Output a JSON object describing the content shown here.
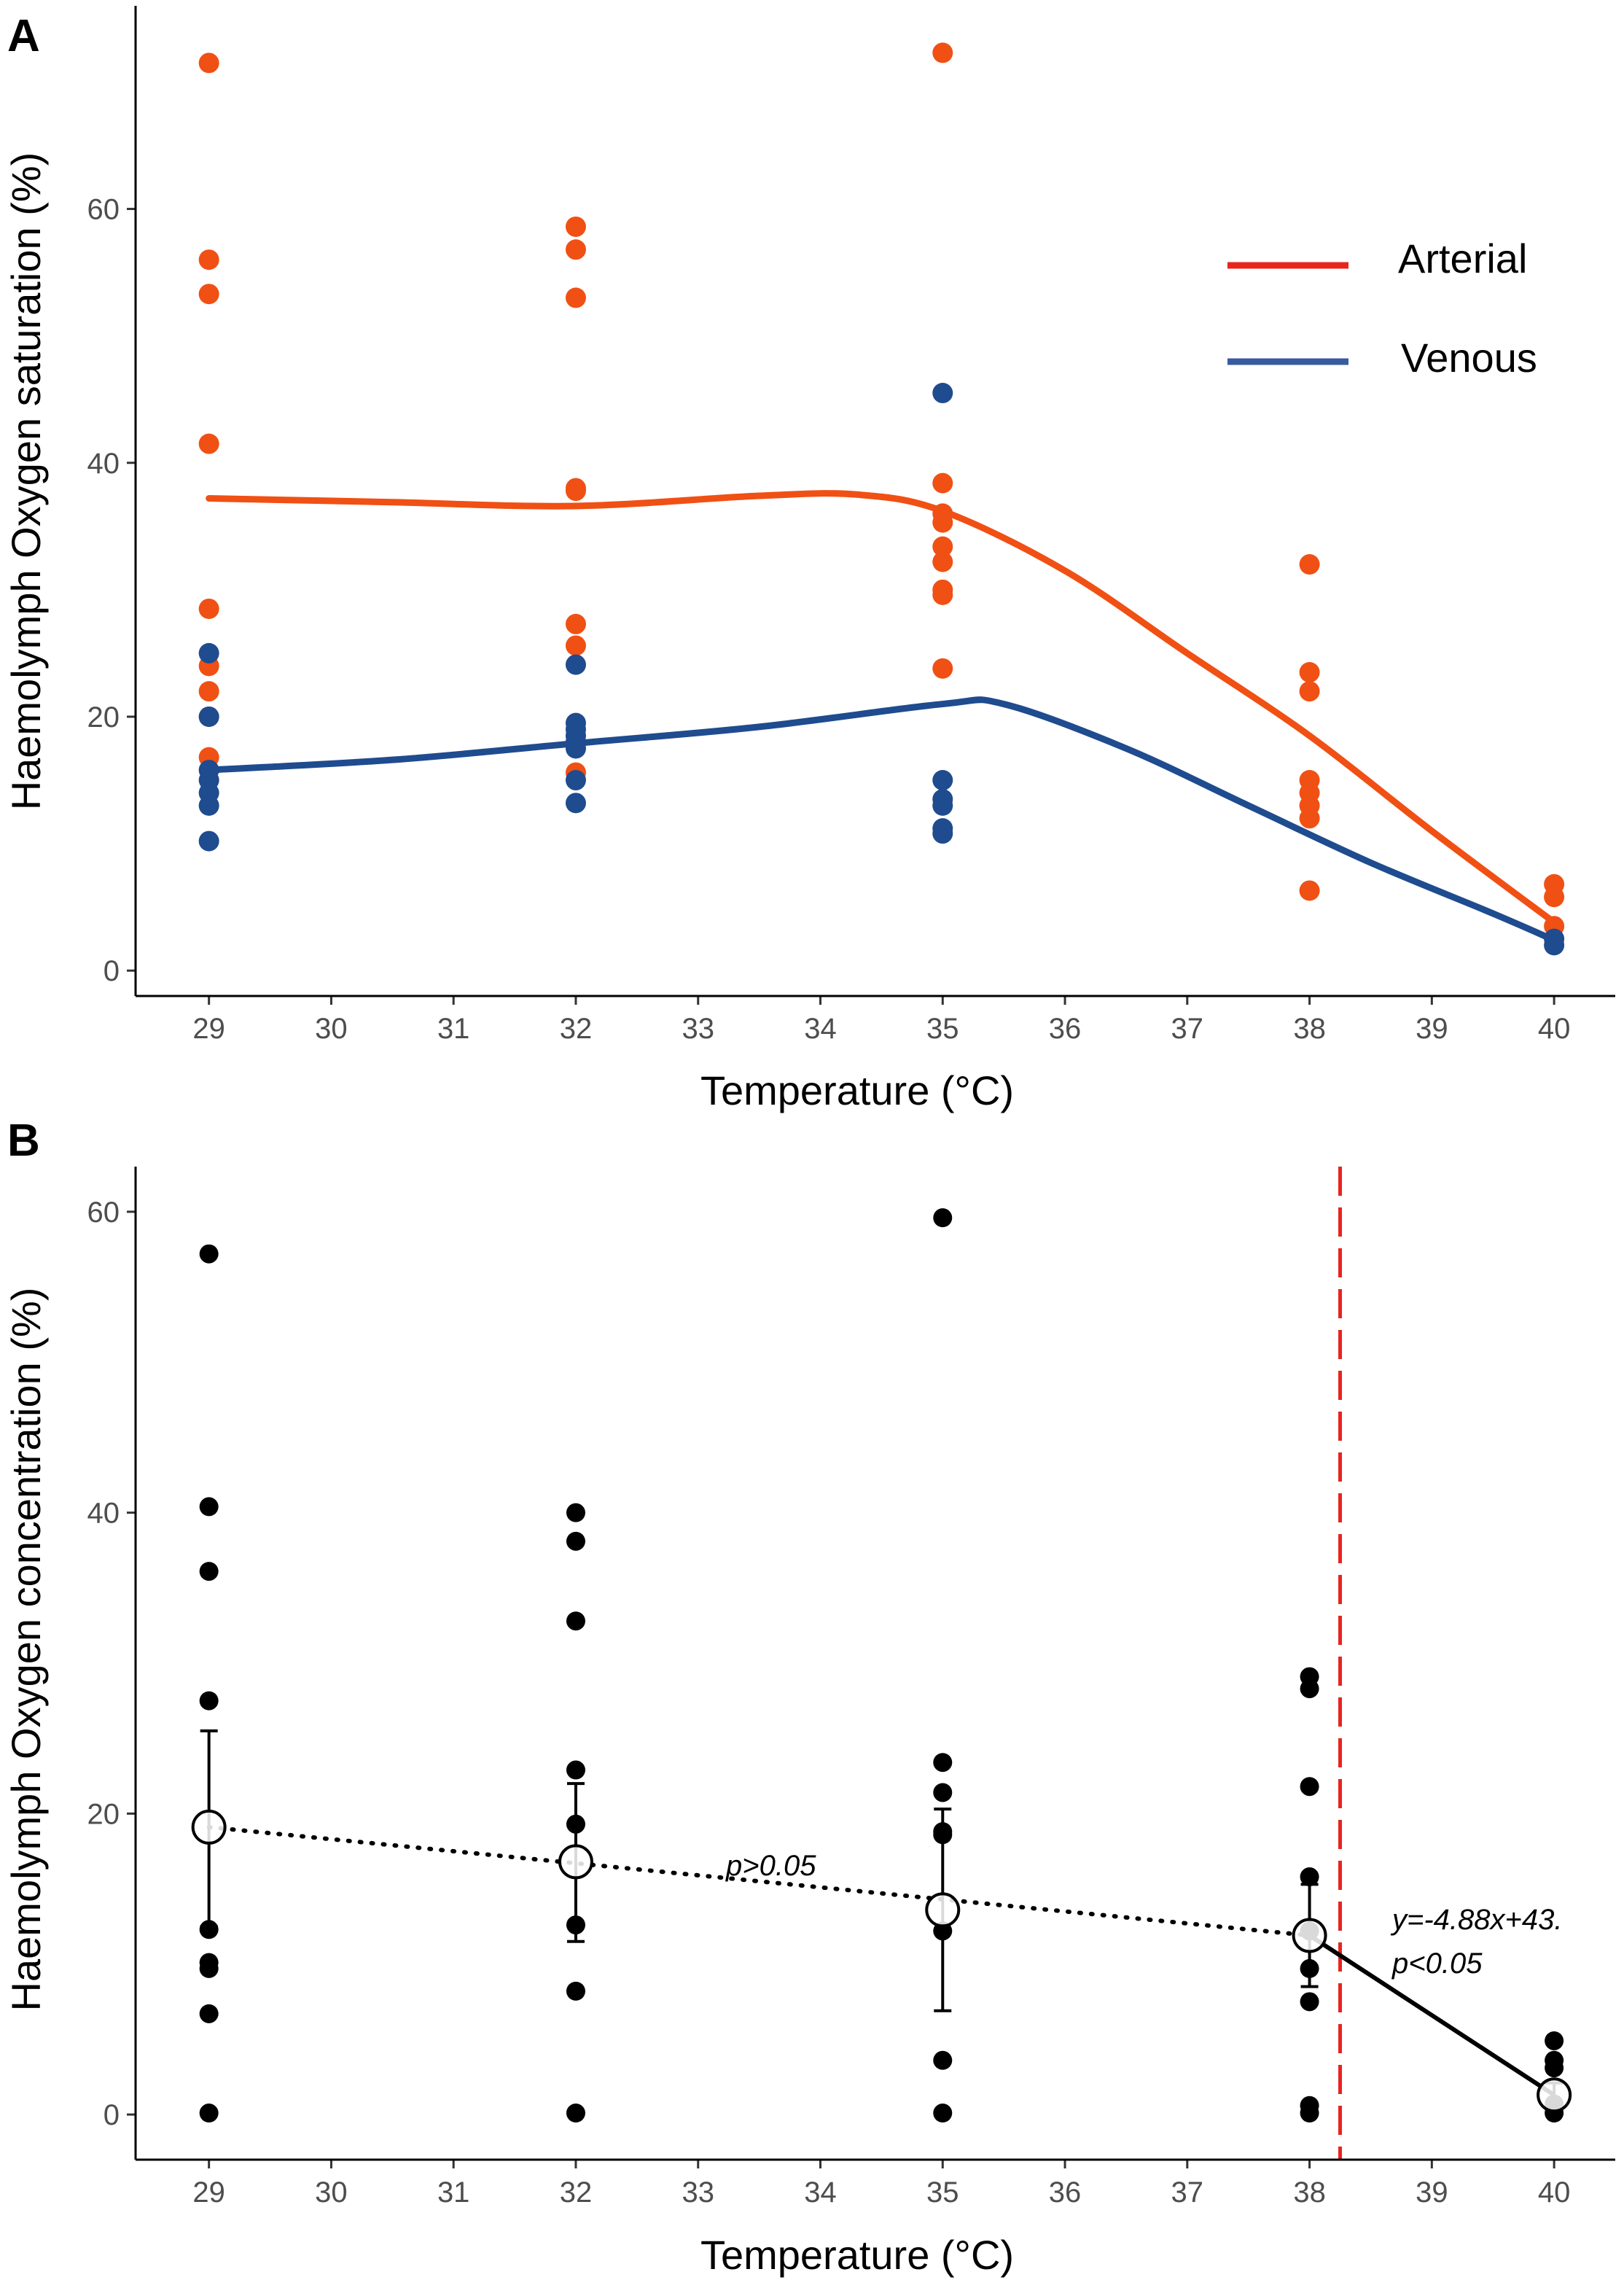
{
  "figure": {
    "panels": [
      "A",
      "B"
    ]
  },
  "chart_data": [
    {
      "panel": "A",
      "type": "scatter",
      "xlabel": "Temperature (°C)",
      "ylabel": "Haemolymph Oxygen saturation (%)",
      "xlim": [
        28.4,
        40.5
      ],
      "ylim": [
        -2,
        76
      ],
      "xticks": [
        29,
        30,
        31,
        32,
        33,
        34,
        35,
        36,
        37,
        38,
        39,
        40
      ],
      "yticks": [
        0,
        20,
        40,
        60
      ],
      "legend_position": "top-right",
      "series": [
        {
          "name": "Arterial",
          "color": "#f05014",
          "legend_color": "#e8241f",
          "points": [
            [
              29,
              71.5
            ],
            [
              29,
              56
            ],
            [
              29,
              53.3
            ],
            [
              29,
              41.5
            ],
            [
              29,
              28.5
            ],
            [
              29,
              24
            ],
            [
              29,
              22
            ],
            [
              29,
              20
            ],
            [
              29,
              16.8
            ],
            [
              32,
              58.6
            ],
            [
              32,
              56.8
            ],
            [
              32,
              53
            ],
            [
              32,
              38
            ],
            [
              32,
              37.8
            ],
            [
              32,
              27.3
            ],
            [
              32,
              25.6
            ],
            [
              32,
              15.6
            ],
            [
              35,
              72.3
            ],
            [
              35,
              38.4
            ],
            [
              35,
              36
            ],
            [
              35,
              35.3
            ],
            [
              35,
              33.4
            ],
            [
              35,
              32.2
            ],
            [
              35,
              30
            ],
            [
              35,
              29.6
            ],
            [
              35,
              23.8
            ],
            [
              38,
              32
            ],
            [
              38,
              23.5
            ],
            [
              38,
              22
            ],
            [
              38,
              15
            ],
            [
              38,
              14
            ],
            [
              38,
              13
            ],
            [
              38,
              12
            ],
            [
              38,
              6.3
            ],
            [
              40,
              6.8
            ],
            [
              40,
              5.8
            ],
            [
              40,
              3.5
            ]
          ],
          "smooth_fit": [
            [
              29,
              37.2
            ],
            [
              30.5,
              36.9
            ],
            [
              32,
              36.6
            ],
            [
              33.5,
              37.4
            ],
            [
              34.3,
              37.5
            ],
            [
              35,
              36.2
            ],
            [
              36,
              31.5
            ],
            [
              37,
              25
            ],
            [
              38,
              18.5
            ],
            [
              39,
              11
            ],
            [
              40,
              3.8
            ]
          ]
        },
        {
          "name": "Venous",
          "color": "#1f4b8f",
          "legend_color": "#3a5aa0",
          "points": [
            [
              29,
              25
            ],
            [
              29,
              20
            ],
            [
              29,
              15.8
            ],
            [
              29,
              15
            ],
            [
              29,
              14
            ],
            [
              29,
              13
            ],
            [
              29,
              10.2
            ],
            [
              32,
              24.1
            ],
            [
              32,
              19.5
            ],
            [
              32,
              19
            ],
            [
              32,
              18.5
            ],
            [
              32,
              18
            ],
            [
              32,
              17.5
            ],
            [
              32,
              15
            ],
            [
              32,
              13.2
            ],
            [
              35,
              45.5
            ],
            [
              35,
              15
            ],
            [
              35,
              13.5
            ],
            [
              35,
              13
            ],
            [
              35,
              11.2
            ],
            [
              35,
              10.8
            ],
            [
              40,
              2.5
            ],
            [
              40,
              2
            ]
          ],
          "smooth_fit": [
            [
              29,
              15.8
            ],
            [
              30.5,
              16.6
            ],
            [
              32,
              17.9
            ],
            [
              33.5,
              19.2
            ],
            [
              35,
              21
            ],
            [
              35.5,
              21
            ],
            [
              36.5,
              17.5
            ],
            [
              37.5,
              13
            ],
            [
              38.5,
              8.5
            ],
            [
              39.5,
              4.5
            ],
            [
              40,
              2.4
            ]
          ]
        }
      ]
    },
    {
      "panel": "B",
      "type": "scatter",
      "xlabel": "Temperature (°C)",
      "ylabel": "Haemolymph Oxygen concentration (%)",
      "xlim": [
        28.4,
        40.5
      ],
      "ylim": [
        -3,
        63
      ],
      "xticks": [
        29,
        30,
        31,
        32,
        33,
        34,
        35,
        36,
        37,
        38,
        39,
        40
      ],
      "yticks": [
        0,
        20,
        40,
        60
      ],
      "points": [
        [
          29,
          57.2
        ],
        [
          29,
          40.4
        ],
        [
          29,
          36.1
        ],
        [
          29,
          27.5
        ],
        [
          29,
          12.3
        ],
        [
          29,
          10.1
        ],
        [
          29,
          9.7
        ],
        [
          29,
          6.7
        ],
        [
          29,
          0.1
        ],
        [
          32,
          40
        ],
        [
          32,
          38.1
        ],
        [
          32,
          32.8
        ],
        [
          32,
          22.9
        ],
        [
          32,
          19.3
        ],
        [
          32,
          12.6
        ],
        [
          32,
          8.2
        ],
        [
          32,
          0.1
        ],
        [
          35,
          59.6
        ],
        [
          35,
          23.4
        ],
        [
          35,
          21.4
        ],
        [
          35,
          18.8
        ],
        [
          35,
          18.6
        ],
        [
          35,
          12.2
        ],
        [
          35,
          3.6
        ],
        [
          35,
          0.1
        ],
        [
          38,
          29.1
        ],
        [
          38,
          28.3
        ],
        [
          38,
          21.8
        ],
        [
          38,
          15.8
        ],
        [
          38,
          12.2
        ],
        [
          38,
          9.7
        ],
        [
          38,
          7.5
        ],
        [
          38,
          0.6
        ],
        [
          38,
          0.1
        ],
        [
          40,
          4.9
        ],
        [
          40,
          3.6
        ],
        [
          40,
          3.1
        ],
        [
          40,
          0.7
        ],
        [
          40,
          0.1
        ]
      ],
      "means": [
        {
          "x": 29,
          "mean": 19.1,
          "lower": 12.5,
          "upper": 25.5
        },
        {
          "x": 32,
          "mean": 16.8,
          "lower": 11.5,
          "upper": 22
        },
        {
          "x": 35,
          "mean": 13.6,
          "lower": 6.9,
          "upper": 20.3
        },
        {
          "x": 38,
          "mean": 11.9,
          "lower": 8.5,
          "upper": 15.3
        },
        {
          "x": 40,
          "mean": 1.3,
          "lower": 0.5,
          "upper": 2.1
        }
      ],
      "dotted_trend": [
        [
          29,
          19.1
        ],
        [
          38,
          11.9
        ]
      ],
      "solid_trend": [
        [
          38,
          11.9
        ],
        [
          40,
          1.3
        ]
      ],
      "breakpoint_x": 38.25,
      "breakpoint_color": "#e8241f",
      "annotations": {
        "nonsignificant": "p>0.05",
        "regression_equation": "y=-4.88x+43.",
        "regression_p": "p<0.05"
      }
    }
  ]
}
